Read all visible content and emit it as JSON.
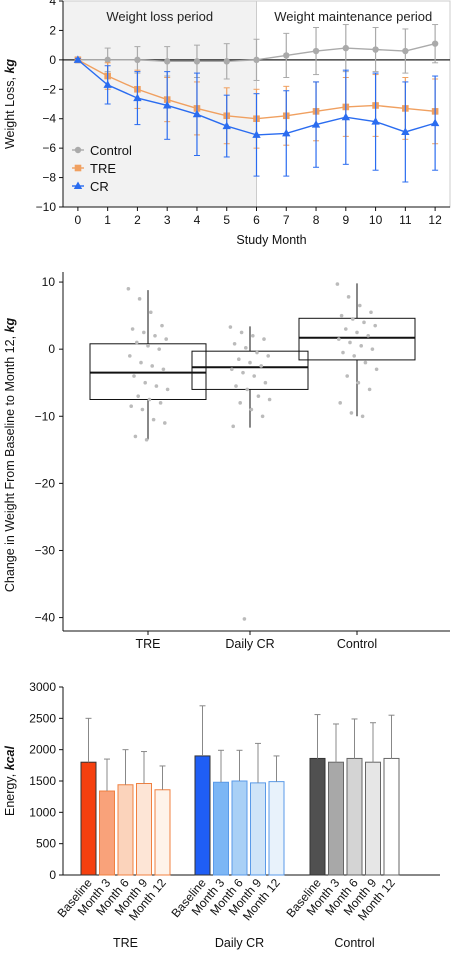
{
  "chart_data": [
    {
      "type": "line",
      "period_labels": [
        "Weight loss period",
        "Weight maintenance period"
      ],
      "xlabel": "Study Month",
      "ylabel": "Weight Loss,",
      "ylabel_unit": "kg",
      "x": [
        0,
        1,
        2,
        3,
        4,
        5,
        6,
        7,
        8,
        9,
        10,
        11,
        12
      ],
      "xlim": [
        -0.5,
        12.5
      ],
      "ylim": [
        -10,
        4
      ],
      "yticks": [
        4,
        2,
        0,
        -2,
        -4,
        -6,
        -8,
        -10
      ],
      "grid": false,
      "legend_position": "bottom-left",
      "series": [
        {
          "name": "Control",
          "color": "#aaaaaa",
          "marker": "circle",
          "values": [
            0,
            0,
            0,
            -0.1,
            -0.1,
            -0.1,
            0,
            0.3,
            0.6,
            0.8,
            0.7,
            0.6,
            1.1
          ],
          "error": [
            0.2,
            0.8,
            0.9,
            1.0,
            1.1,
            1.2,
            1.4,
            1.5,
            1.6,
            1.6,
            1.5,
            1.5,
            1.3
          ]
        },
        {
          "name": "TRE",
          "color": "#f0a060",
          "marker": "square",
          "values": [
            0,
            -1.1,
            -2.0,
            -2.7,
            -3.3,
            -3.8,
            -4.0,
            -3.8,
            -3.5,
            -3.2,
            -3.1,
            -3.3,
            -3.5
          ],
          "error": [
            0.1,
            0.9,
            1.3,
            1.5,
            1.8,
            1.9,
            2.0,
            2.0,
            2.0,
            2.0,
            2.1,
            2.1,
            2.2
          ]
        },
        {
          "name": "CR",
          "color": "#2a6cf0",
          "marker": "triangle",
          "values": [
            0,
            -1.7,
            -2.6,
            -3.1,
            -3.7,
            -4.5,
            -5.1,
            -5.0,
            -4.4,
            -3.9,
            -4.2,
            -4.9,
            -4.3
          ],
          "error": [
            0.1,
            1.3,
            1.8,
            2.3,
            2.8,
            2.1,
            2.8,
            2.9,
            2.9,
            3.2,
            3.3,
            3.4,
            3.2
          ]
        }
      ]
    },
    {
      "type": "box",
      "categories": [
        "TRE",
        "Daily CR",
        "Control"
      ],
      "ylabel": "Change in Weight From Baseline to Month 12,",
      "ylabel_unit": "kg",
      "ylim": [
        -42,
        11.5
      ],
      "yticks": [
        10,
        0,
        -10,
        -20,
        -30,
        -40
      ],
      "grid": false,
      "boxes": [
        {
          "q1": -7.5,
          "median": -3.5,
          "q3": 0.8,
          "whisker_low": -13.5,
          "whisker_high": 8.8,
          "points": [
            9,
            7.5,
            5.5,
            3.5,
            3,
            2.5,
            2,
            1.5,
            1,
            0.5,
            0,
            -1,
            -2,
            -2.5,
            -3,
            -4,
            -5,
            -5.5,
            -6,
            -7,
            -7.5,
            -8,
            -8.5,
            -9,
            -10.5,
            -11,
            -13,
            -13.5
          ]
        },
        {
          "q1": -6.0,
          "median": -2.7,
          "q3": -0.3,
          "whisker_low": -11.7,
          "whisker_high": 3.4,
          "points": [
            3.3,
            2.5,
            2,
            1.5,
            0.8,
            0.2,
            -0.5,
            -1,
            -1.5,
            -2,
            -2.5,
            -3,
            -3.5,
            -4,
            -5,
            -5.5,
            -6,
            -7,
            -7.5,
            -8,
            -9,
            -10,
            -11.5,
            -40.2
          ]
        },
        {
          "q1": -1.6,
          "median": 1.7,
          "q3": 4.6,
          "whisker_low": -10.0,
          "whisker_high": 9.8,
          "points": [
            9.7,
            7.8,
            6.5,
            5.5,
            5,
            4.5,
            4,
            3.5,
            3,
            2.5,
            2,
            1.5,
            1,
            0.5,
            0,
            -0.5,
            -1,
            -2,
            -3,
            -4,
            -5,
            -6,
            -8,
            -9.5,
            -10
          ]
        }
      ]
    },
    {
      "type": "bar",
      "ylabel": "Energy,",
      "ylabel_unit": "kcal",
      "ylim": [
        0,
        3000
      ],
      "yticks": [
        3000,
        2500,
        2000,
        1500,
        1000,
        500,
        0
      ],
      "grid": false,
      "categories": [
        "Baseline",
        "Month 3",
        "Month 6",
        "Month 9",
        "Month 12"
      ],
      "groups": [
        {
          "name": "TRE",
          "values": [
            1800,
            1340,
            1440,
            1460,
            1360
          ],
          "error": [
            700,
            510,
            560,
            510,
            380
          ],
          "fills": [
            "#f5400f",
            "#f9a27a",
            "#fbd3bb",
            "#fde5d6",
            "#fef3ea"
          ],
          "stroke": "#f08040"
        },
        {
          "name": "Daily CR",
          "values": [
            1900,
            1480,
            1500,
            1470,
            1490
          ],
          "error": [
            800,
            510,
            490,
            630,
            410
          ],
          "fills": [
            "#1f5ef5",
            "#7cb6f5",
            "#a9d0f6",
            "#cfe4f8",
            "#e8f2fb"
          ],
          "stroke": "#5a9ae8"
        },
        {
          "name": "Control",
          "values": [
            1860,
            1800,
            1860,
            1800,
            1860
          ],
          "error": [
            700,
            610,
            630,
            630,
            690
          ],
          "fills": [
            "#505050",
            "#a8a8a8",
            "#d4d4d4",
            "#e6e6e6",
            "#ffffff"
          ],
          "stroke": "#666666"
        }
      ]
    }
  ]
}
